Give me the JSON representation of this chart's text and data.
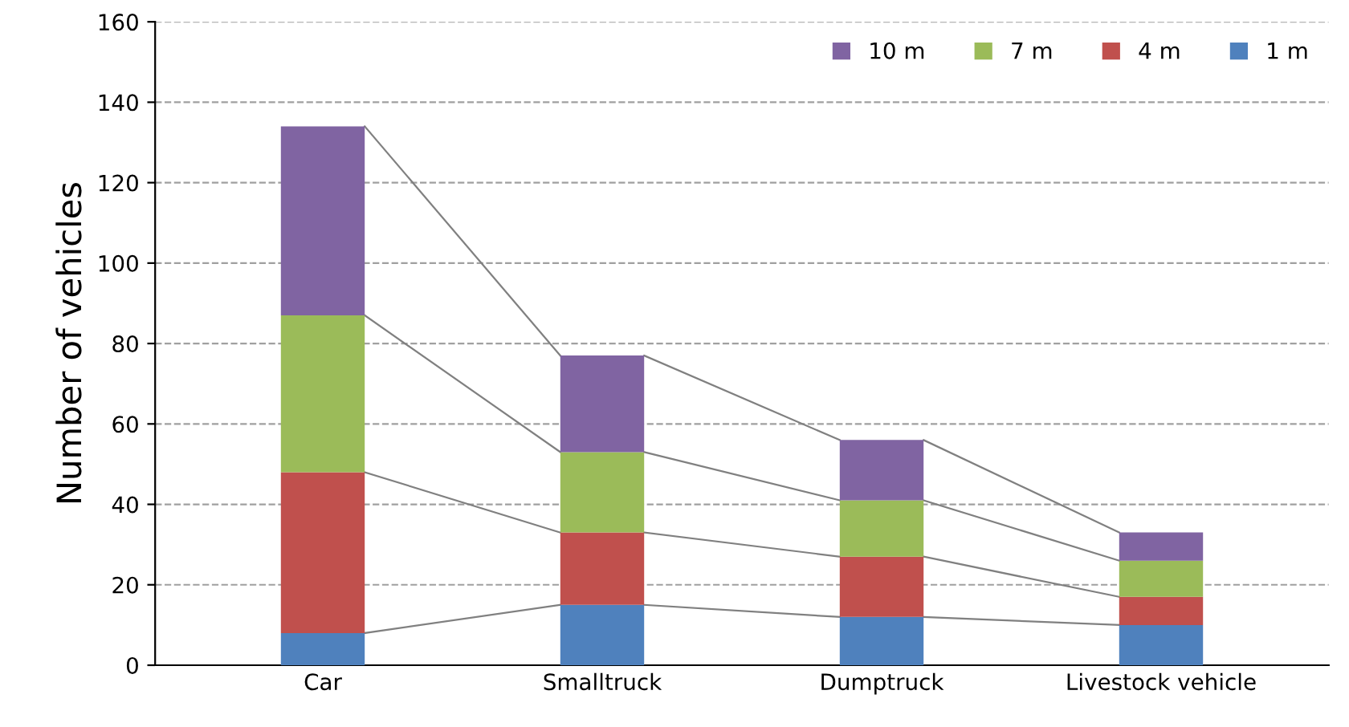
{
  "chart_data": {
    "type": "bar",
    "stacked": true,
    "ylabel": "Number of vehicles",
    "categories": [
      "Car",
      "Smalltruck",
      "Dumptruck",
      "Livestock vehicle"
    ],
    "series": [
      {
        "name": "1 m",
        "color": "#4f81bd",
        "values": [
          8,
          15,
          12,
          10
        ]
      },
      {
        "name": "4 m",
        "color": "#c0504d",
        "values": [
          40,
          18,
          15,
          7
        ]
      },
      {
        "name": "7 m",
        "color": "#9bbb59",
        "values": [
          39,
          20,
          14,
          9
        ]
      },
      {
        "name": "10 m",
        "color": "#8064a2",
        "values": [
          47,
          24,
          15,
          7
        ]
      }
    ],
    "ylim": [
      0,
      160
    ],
    "yticks": [
      0,
      20,
      40,
      60,
      80,
      100,
      120,
      140,
      160
    ],
    "grid": "y",
    "legend": "top right"
  }
}
